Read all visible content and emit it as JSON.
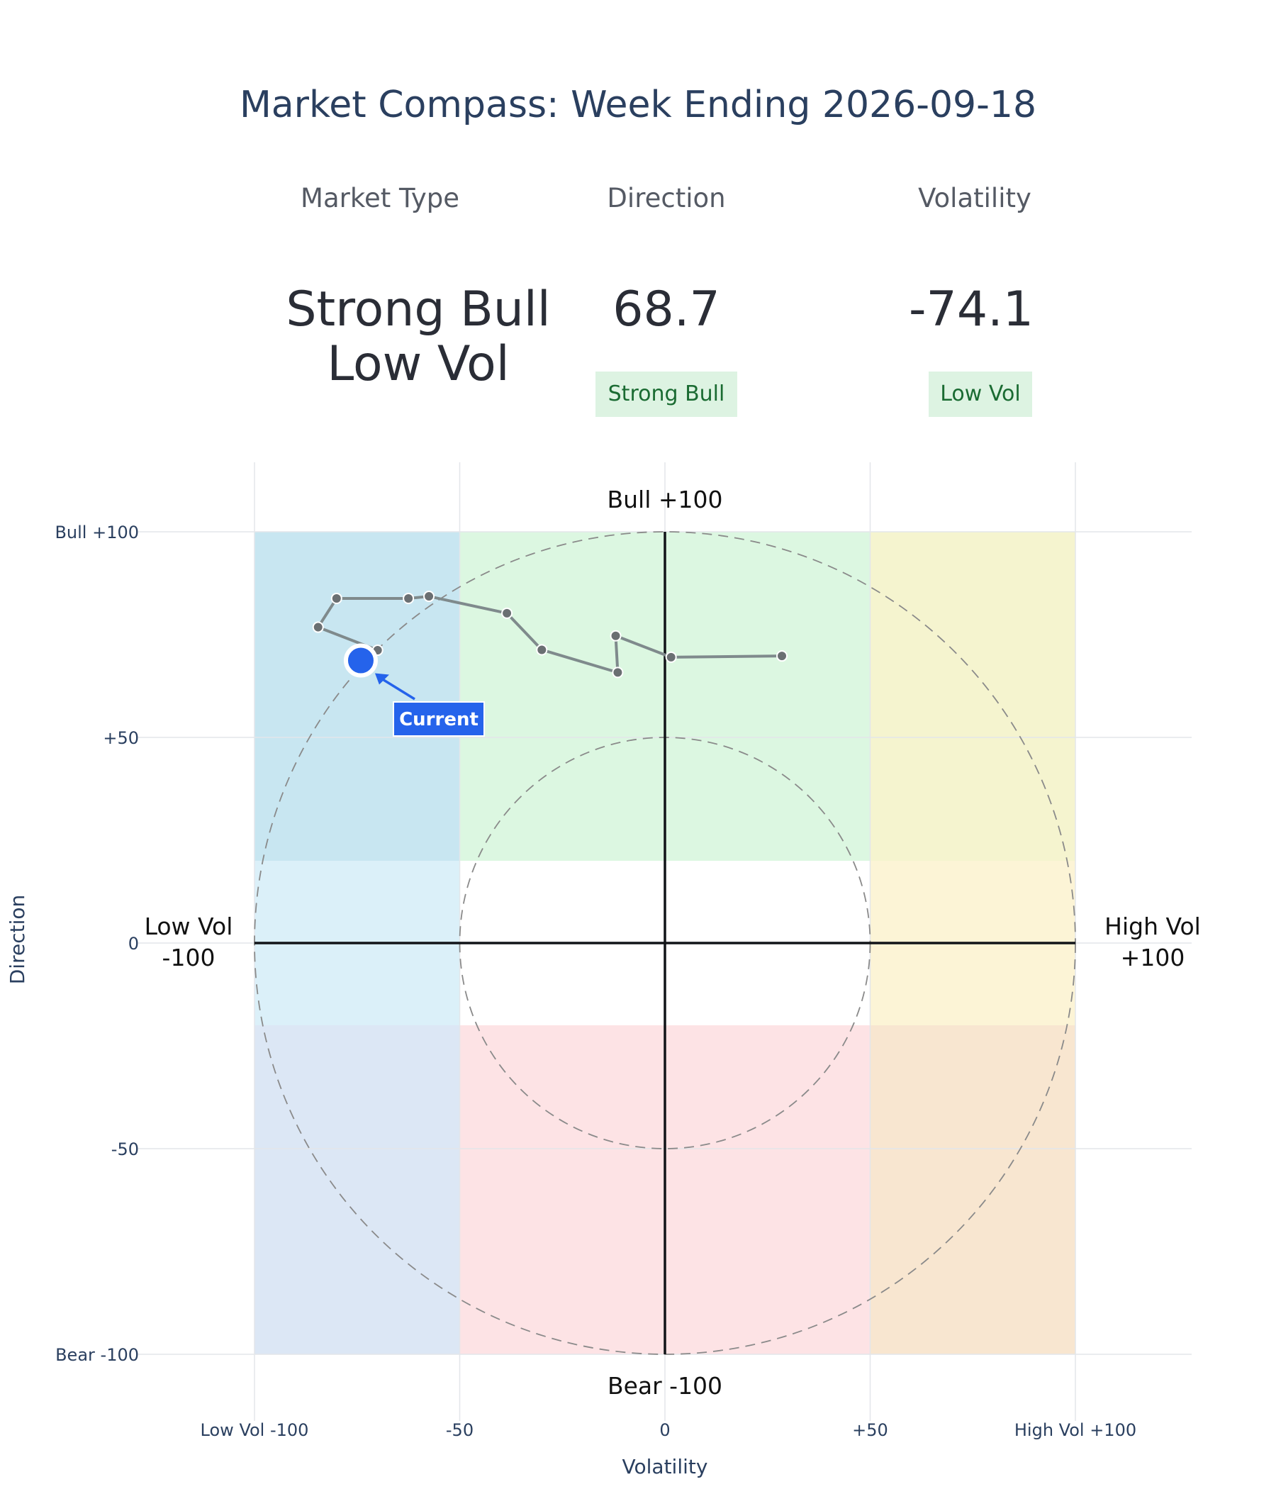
{
  "title": "Market Compass: Week Ending 2026-09-18",
  "indicators": {
    "market_type": {
      "label": "Market Type",
      "value_line1": "Strong Bull",
      "value_line2": "Low Vol"
    },
    "direction": {
      "label": "Direction",
      "value": "68.7",
      "badge": "Strong Bull"
    },
    "volatility": {
      "label": "Volatility",
      "value": "-74.1",
      "badge": "Low Vol"
    }
  },
  "chart_data": {
    "type": "scatter",
    "xlabel": "Volatility",
    "ylabel": "Direction",
    "xlim": [
      -100,
      100
    ],
    "ylim": [
      -100,
      100
    ],
    "grid": true,
    "x_ticks": [
      {
        "value": -100,
        "label": "Low Vol -100"
      },
      {
        "value": -50,
        "label": "-50"
      },
      {
        "value": 0,
        "label": "0"
      },
      {
        "value": 50,
        "label": "+50"
      },
      {
        "value": 100,
        "label": "High Vol +100"
      }
    ],
    "y_ticks": [
      {
        "value": 100,
        "label": "Bull +100"
      },
      {
        "value": 50,
        "label": "+50"
      },
      {
        "value": 0,
        "label": "0"
      },
      {
        "value": -50,
        "label": "-50"
      },
      {
        "value": -100,
        "label": "Bear -100"
      }
    ],
    "axis_end_labels": {
      "top": "Bull +100",
      "bottom": "Bear -100",
      "left": [
        "Low Vol",
        "-100"
      ],
      "right": [
        "High Vol",
        "+100"
      ]
    },
    "zones": [
      {
        "x": [
          -100,
          -50
        ],
        "y": [
          20,
          100
        ],
        "color": "#c8e6f1"
      },
      {
        "x": [
          -50,
          50
        ],
        "y": [
          20,
          100
        ],
        "color": "#dcf7e1"
      },
      {
        "x": [
          50,
          100
        ],
        "y": [
          20,
          100
        ],
        "color": "#f5f4cf"
      },
      {
        "x": [
          -100,
          -50
        ],
        "y": [
          -20,
          20
        ],
        "color": "#dbf0f9"
      },
      {
        "x": [
          50,
          100
        ],
        "y": [
          -20,
          20
        ],
        "color": "#fcf4d6"
      },
      {
        "x": [
          -100,
          -50
        ],
        "y": [
          -100,
          -20
        ],
        "color": "#dce7f5"
      },
      {
        "x": [
          -50,
          50
        ],
        "y": [
          -100,
          -20
        ],
        "color": "#fde3e5"
      },
      {
        "x": [
          50,
          100
        ],
        "y": [
          -100,
          -20
        ],
        "color": "#f8e6d0"
      }
    ],
    "circles": [
      50,
      100
    ],
    "trail": {
      "x": [
        28.5,
        1.5,
        -12.0,
        -11.5,
        -30.0,
        -38.5,
        -57.5,
        -62.5,
        -80.0,
        -84.5,
        -70.0,
        -74.1
      ],
      "y": [
        69.8,
        69.5,
        74.7,
        65.8,
        71.3,
        80.2,
        84.3,
        83.8,
        83.8,
        76.8,
        71.2,
        68.7
      ],
      "color": "#7f8a8c"
    },
    "current": {
      "x": -74.1,
      "y": 68.7,
      "label": "Current",
      "color": "#2563eb"
    }
  }
}
